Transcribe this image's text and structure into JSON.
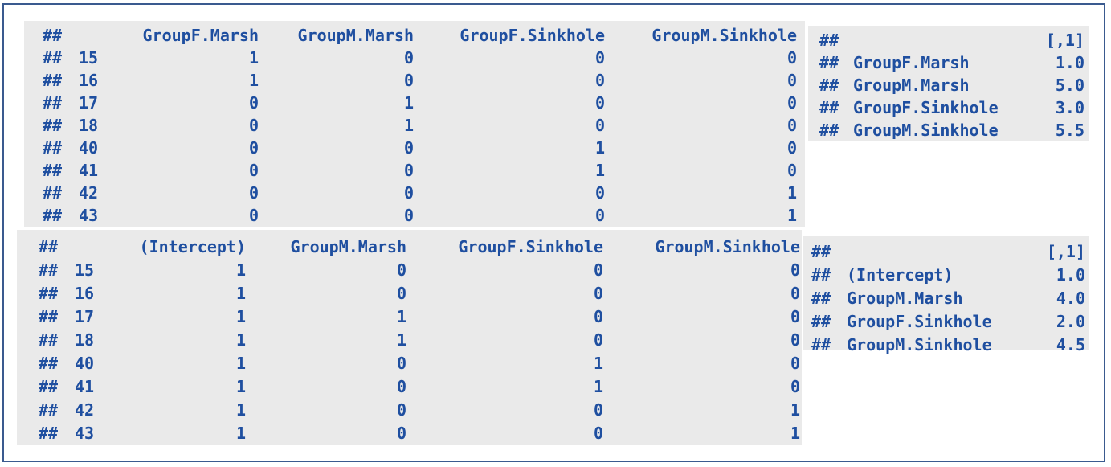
{
  "output_blocks": [
    {
      "id": "design-matrix-means",
      "prefix": "##",
      "columns": [
        "GroupF.Marsh",
        "GroupM.Marsh",
        "GroupF.Sinkhole",
        "GroupM.Sinkhole"
      ],
      "rows": [
        {
          "name": "15",
          "values": [
            "1",
            "0",
            "0",
            "0"
          ]
        },
        {
          "name": "16",
          "values": [
            "1",
            "0",
            "0",
            "0"
          ]
        },
        {
          "name": "17",
          "values": [
            "0",
            "1",
            "0",
            "0"
          ]
        },
        {
          "name": "18",
          "values": [
            "0",
            "1",
            "0",
            "0"
          ]
        },
        {
          "name": "40",
          "values": [
            "0",
            "0",
            "1",
            "0"
          ]
        },
        {
          "name": "41",
          "values": [
            "0",
            "0",
            "1",
            "0"
          ]
        },
        {
          "name": "42",
          "values": [
            "0",
            "0",
            "0",
            "1"
          ]
        },
        {
          "name": "43",
          "values": [
            "0",
            "0",
            "0",
            "1"
          ]
        }
      ]
    },
    {
      "id": "coef-means",
      "prefix": "##",
      "header": "[,1]",
      "rows": [
        {
          "name": "GroupF.Marsh",
          "value": "1.0"
        },
        {
          "name": "GroupM.Marsh",
          "value": "5.0"
        },
        {
          "name": "GroupF.Sinkhole",
          "value": "3.0"
        },
        {
          "name": "GroupM.Sinkhole",
          "value": "5.5"
        }
      ]
    },
    {
      "id": "design-matrix-intercept",
      "prefix": "##",
      "columns": [
        "(Intercept)",
        "GroupM.Marsh",
        "GroupF.Sinkhole",
        "GroupM.Sinkhole"
      ],
      "rows": [
        {
          "name": "15",
          "values": [
            "1",
            "0",
            "0",
            "0"
          ]
        },
        {
          "name": "16",
          "values": [
            "1",
            "0",
            "0",
            "0"
          ]
        },
        {
          "name": "17",
          "values": [
            "1",
            "1",
            "0",
            "0"
          ]
        },
        {
          "name": "18",
          "values": [
            "1",
            "1",
            "0",
            "0"
          ]
        },
        {
          "name": "40",
          "values": [
            "1",
            "0",
            "1",
            "0"
          ]
        },
        {
          "name": "41",
          "values": [
            "1",
            "0",
            "1",
            "0"
          ]
        },
        {
          "name": "42",
          "values": [
            "1",
            "0",
            "0",
            "1"
          ]
        },
        {
          "name": "43",
          "values": [
            "1",
            "0",
            "0",
            "1"
          ]
        }
      ]
    },
    {
      "id": "coef-intercept",
      "prefix": "##",
      "header": "[,1]",
      "rows": [
        {
          "name": "(Intercept)",
          "value": "1.0"
        },
        {
          "name": "GroupM.Marsh",
          "value": "4.0"
        },
        {
          "name": "GroupF.Sinkhole",
          "value": "2.0"
        },
        {
          "name": "GroupM.Sinkhole",
          "value": "4.5"
        }
      ]
    }
  ],
  "colors": {
    "text": "#1f4fa0",
    "block_background": "#eaeaea",
    "frame_border": "#3a5a8f"
  }
}
